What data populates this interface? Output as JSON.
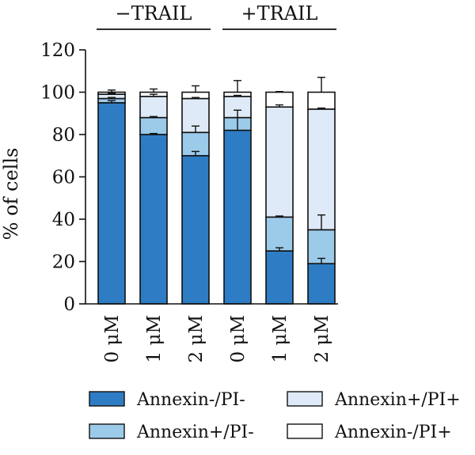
{
  "chart_data": {
    "type": "bar",
    "stacked": true,
    "title": "",
    "xlabel": "",
    "ylabel": "% of cells",
    "ylim": [
      0,
      120
    ],
    "yticks": [
      0,
      20,
      40,
      60,
      80,
      100,
      120
    ],
    "categories": [
      "0 μM",
      "1 μM",
      "2 μM",
      "0 μM",
      "1 μM",
      "2 μM"
    ],
    "groups": [
      {
        "label": "−TRAIL",
        "indices": [
          0,
          1,
          2
        ]
      },
      {
        "label": "+TRAIL",
        "indices": [
          3,
          4,
          5
        ]
      }
    ],
    "series": [
      {
        "name": "Annexin-/PI-",
        "color": "#2e7dc4",
        "values": [
          95,
          80,
          70,
          82,
          25,
          19
        ],
        "errors": [
          1,
          0.5,
          2,
          6,
          1.5,
          2.5
        ]
      },
      {
        "name": "Annexin+/PI-",
        "color": "#9ccbea",
        "values": [
          2,
          8,
          11,
          6,
          16,
          16
        ],
        "errors": [
          0.5,
          0.5,
          3,
          3.5,
          0.5,
          7
        ]
      },
      {
        "name": "Annexin+/PI+",
        "color": "#deeaf7",
        "values": [
          2,
          10,
          16,
          10,
          52,
          57
        ],
        "errors": [
          0.5,
          1,
          0.5,
          0.5,
          1,
          0.5
        ]
      },
      {
        "name": "Annexin-/PI+",
        "color": "#ffffff",
        "values": [
          1,
          2,
          3,
          2,
          7,
          8
        ],
        "errors": [
          1,
          1.5,
          3,
          5.5,
          0.3,
          7
        ]
      }
    ],
    "legend": {
      "position": "bottom",
      "columns": 2
    },
    "grid": false
  }
}
